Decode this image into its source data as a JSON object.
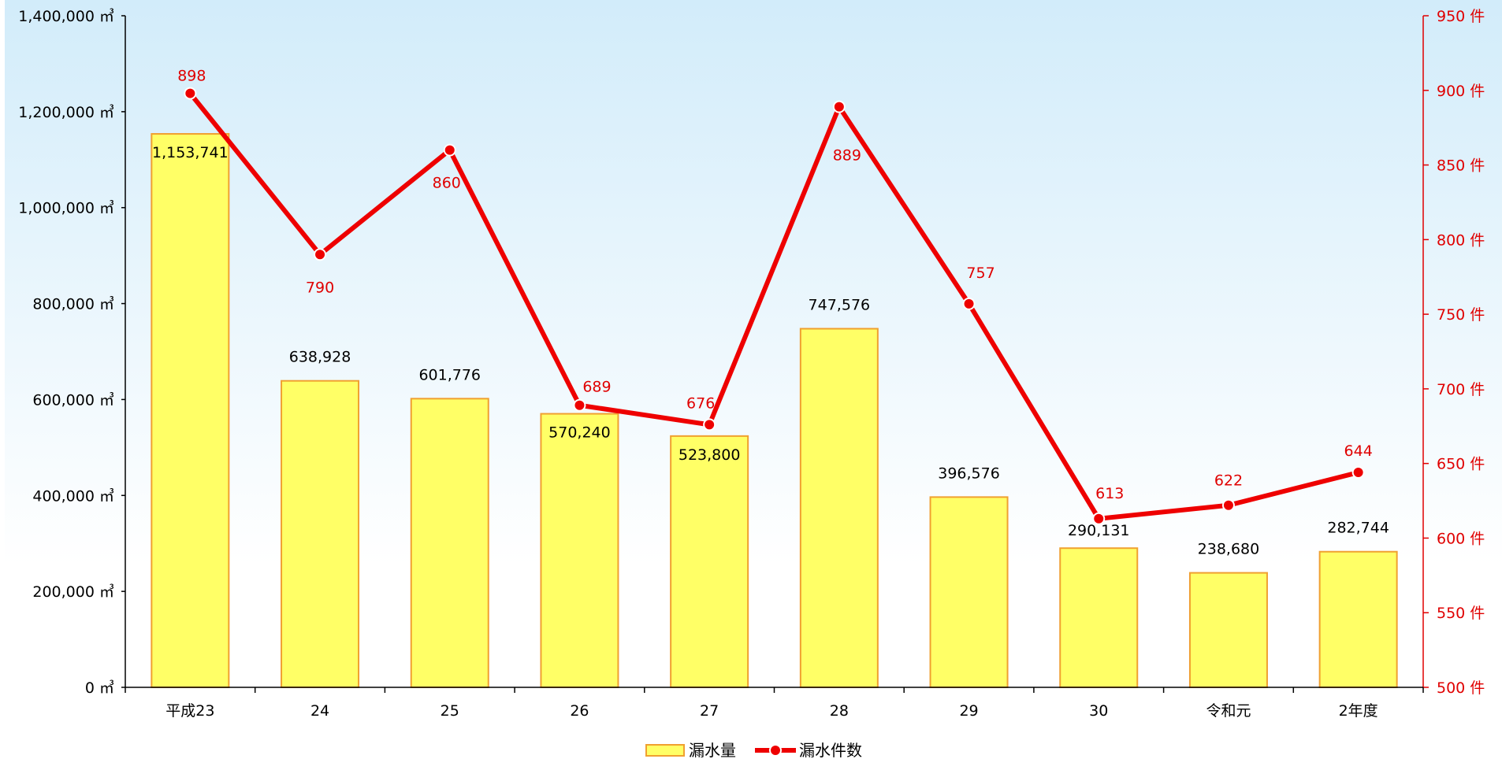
{
  "chart_data": {
    "type": "bar",
    "categories": [
      "平成23",
      "24",
      "25",
      "26",
      "27",
      "28",
      "29",
      "30",
      "令和元",
      "2年度"
    ],
    "series": [
      {
        "name": "漏水量",
        "type": "bar",
        "axis": "left",
        "values": [
          1153741,
          638928,
          601776,
          570240,
          523800,
          747576,
          396576,
          290131,
          238680,
          282744
        ],
        "labels": [
          "1,153,741",
          "638,928",
          "601,776",
          "570,240",
          "523,800",
          "747,576",
          "396,576",
          "290,131",
          "238,680",
          "282,744"
        ],
        "color": "#ffff66",
        "border_color": "#f0a030"
      },
      {
        "name": "漏水件数",
        "type": "line",
        "axis": "right",
        "values": [
          898,
          790,
          860,
          689,
          676,
          889,
          757,
          613,
          622,
          644
        ],
        "labels": [
          "898",
          "790",
          "860",
          "689",
          "676",
          "889",
          "757",
          "613",
          "622",
          "644"
        ],
        "color": "#ee0000"
      }
    ],
    "left_axis": {
      "ylim": [
        0,
        1400000
      ],
      "tick_labels": [
        "0 ㎥",
        "200,000 ㎥",
        "400,000 ㎥",
        "600,000 ㎥",
        "800,000 ㎥",
        "1,000,000 ㎥",
        "1,200,000 ㎥",
        "1,400,000 ㎥"
      ]
    },
    "right_axis": {
      "ylim": [
        500,
        950
      ],
      "tick_labels": [
        "500 件",
        "550 件",
        "600 件",
        "650 件",
        "700 件",
        "750 件",
        "800 件",
        "850 件",
        "900 件",
        "950 件"
      ],
      "color": "#e00000"
    },
    "grid": false,
    "legend": "bottom-center",
    "background_gradient": [
      "#d2ecfa",
      "#ffffff"
    ]
  }
}
